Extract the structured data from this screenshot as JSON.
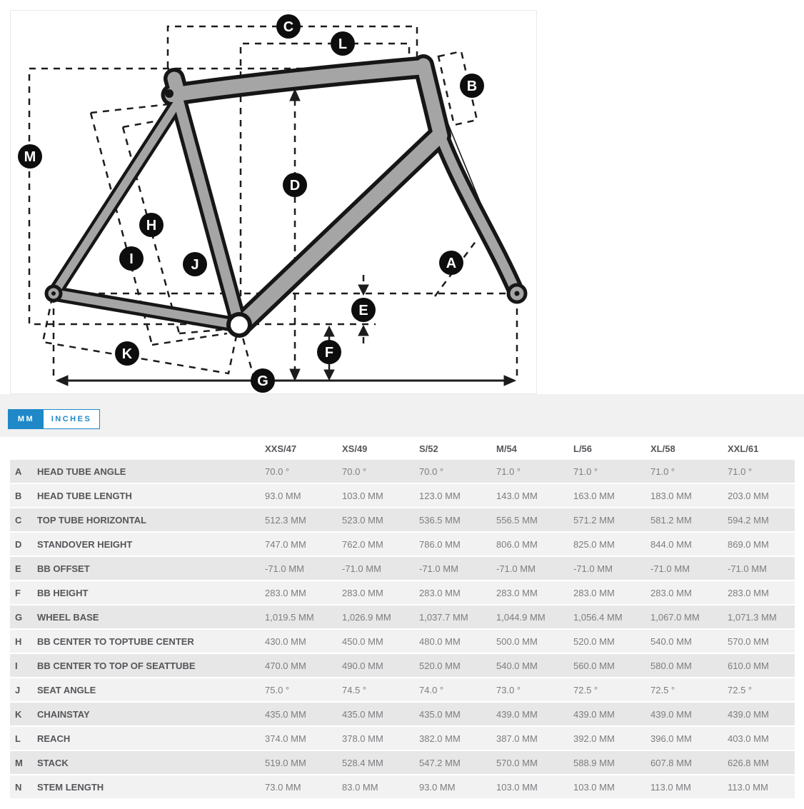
{
  "toggle": {
    "mm_label": "MM",
    "inches_label": "INCHES",
    "selected": "MM",
    "accent_color": "#1e88c8"
  },
  "diagram": {
    "frame_color": "#a5a5a5",
    "outline_color": "#161616",
    "badges": [
      "A",
      "B",
      "C",
      "D",
      "E",
      "F",
      "G",
      "H",
      "I",
      "J",
      "K",
      "L",
      "M"
    ]
  },
  "table": {
    "columns": [
      "XXS/47",
      "XS/49",
      "S/52",
      "M/54",
      "L/56",
      "XL/58",
      "XXL/61"
    ],
    "rows": [
      {
        "letter": "A",
        "name": "HEAD TUBE ANGLE",
        "values": [
          "70.0 °",
          "70.0 °",
          "70.0 °",
          "71.0 °",
          "71.0 °",
          "71.0 °",
          "71.0 °"
        ]
      },
      {
        "letter": "B",
        "name": "HEAD TUBE LENGTH",
        "values": [
          "93.0 MM",
          "103.0 MM",
          "123.0 MM",
          "143.0 MM",
          "163.0 MM",
          "183.0 MM",
          "203.0 MM"
        ]
      },
      {
        "letter": "C",
        "name": "TOP TUBE HORIZONTAL",
        "values": [
          "512.3 MM",
          "523.0 MM",
          "536.5 MM",
          "556.5 MM",
          "571.2 MM",
          "581.2 MM",
          "594.2 MM"
        ]
      },
      {
        "letter": "D",
        "name": "STANDOVER HEIGHT",
        "values": [
          "747.0 MM",
          "762.0 MM",
          "786.0 MM",
          "806.0 MM",
          "825.0 MM",
          "844.0 MM",
          "869.0 MM"
        ]
      },
      {
        "letter": "E",
        "name": "BB OFFSET",
        "values": [
          "-71.0 MM",
          "-71.0 MM",
          "-71.0 MM",
          "-71.0 MM",
          "-71.0 MM",
          "-71.0 MM",
          "-71.0 MM"
        ]
      },
      {
        "letter": "F",
        "name": "BB HEIGHT",
        "values": [
          "283.0 MM",
          "283.0 MM",
          "283.0 MM",
          "283.0 MM",
          "283.0 MM",
          "283.0 MM",
          "283.0 MM"
        ]
      },
      {
        "letter": "G",
        "name": "WHEEL BASE",
        "values": [
          "1,019.5 MM",
          "1,026.9 MM",
          "1,037.7 MM",
          "1,044.9 MM",
          "1,056.4 MM",
          "1,067.0 MM",
          "1,071.3 MM"
        ]
      },
      {
        "letter": "H",
        "name": "BB CENTER TO TOPTUBE CENTER",
        "values": [
          "430.0 MM",
          "450.0 MM",
          "480.0 MM",
          "500.0 MM",
          "520.0 MM",
          "540.0 MM",
          "570.0 MM"
        ]
      },
      {
        "letter": "I",
        "name": "BB CENTER TO TOP OF SEATTUBE",
        "values": [
          "470.0 MM",
          "490.0 MM",
          "520.0 MM",
          "540.0 MM",
          "560.0 MM",
          "580.0 MM",
          "610.0 MM"
        ]
      },
      {
        "letter": "J",
        "name": "SEAT ANGLE",
        "values": [
          "75.0 °",
          "74.5 °",
          "74.0 °",
          "73.0 °",
          "72.5 °",
          "72.5 °",
          "72.5 °"
        ]
      },
      {
        "letter": "K",
        "name": "CHAINSTAY",
        "values": [
          "435.0 MM",
          "435.0 MM",
          "435.0 MM",
          "439.0 MM",
          "439.0 MM",
          "439.0 MM",
          "439.0 MM"
        ]
      },
      {
        "letter": "L",
        "name": "REACH",
        "values": [
          "374.0 MM",
          "378.0 MM",
          "382.0 MM",
          "387.0 MM",
          "392.0 MM",
          "396.0 MM",
          "403.0 MM"
        ]
      },
      {
        "letter": "M",
        "name": "STACK",
        "values": [
          "519.0 MM",
          "528.4 MM",
          "547.2 MM",
          "570.0 MM",
          "588.9 MM",
          "607.8 MM",
          "626.8 MM"
        ]
      },
      {
        "letter": "N",
        "name": "STEM LENGTH",
        "values": [
          "73.0 MM",
          "83.0 MM",
          "93.0 MM",
          "103.0 MM",
          "103.0 MM",
          "113.0 MM",
          "113.0 MM"
        ]
      }
    ]
  }
}
